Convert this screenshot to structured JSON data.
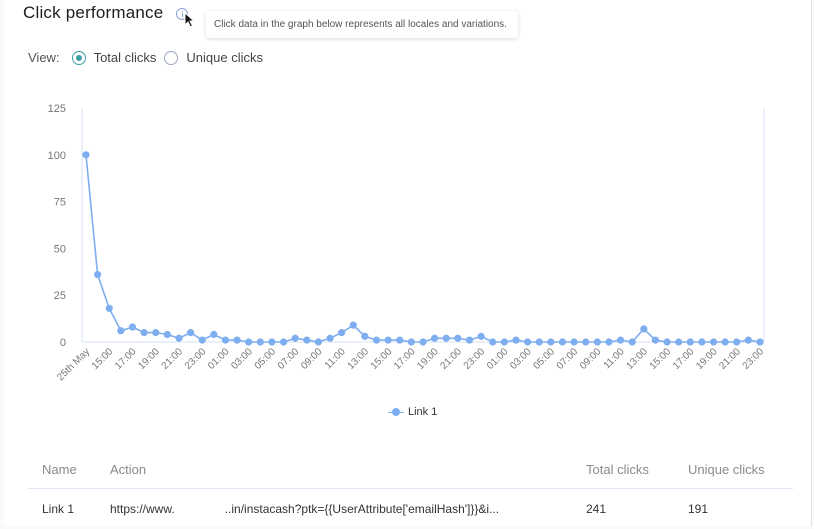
{
  "header": {
    "title": "Click performance",
    "info_icon": "info-circle-icon",
    "tooltip": "Click data in the graph below represents all locales and variations."
  },
  "view": {
    "label": "View:",
    "options": [
      {
        "label": "Total clicks",
        "checked": true
      },
      {
        "label": "Unique clicks",
        "checked": false
      }
    ]
  },
  "colors": {
    "series": "#7eaef0",
    "accent": "#3a9ea5",
    "axis": "#d6e2f5"
  },
  "chart_data": {
    "type": "line",
    "title": "",
    "xlabel": "",
    "ylabel": "",
    "ylim": [
      0,
      125
    ],
    "yticks": [
      0,
      25,
      50,
      75,
      100,
      125
    ],
    "grid": false,
    "legend_position": "bottom",
    "x_tick_labels": [
      "25th May",
      "15:00",
      "17:00",
      "19:00",
      "21:00",
      "23:00",
      "01:00",
      "03:00",
      "05:00",
      "07:00",
      "09:00",
      "11:00",
      "13:00",
      "15:00",
      "17:00",
      "19:00",
      "21:00",
      "23:00",
      "01:00",
      "03:00",
      "05:00",
      "07:00",
      "09:00",
      "11:00",
      "13:00",
      "15:00",
      "17:00",
      "19:00",
      "21:00",
      "23:00"
    ],
    "series": [
      {
        "name": "Link 1",
        "values": [
          100,
          36,
          18,
          6,
          8,
          5,
          5,
          4,
          2,
          5,
          1,
          4,
          1,
          1,
          0,
          0,
          0,
          0,
          2,
          1,
          0,
          2,
          5,
          9,
          3,
          1,
          1,
          1,
          0,
          0,
          2,
          2,
          2,
          1,
          3,
          0,
          0,
          1,
          0,
          0,
          0,
          0,
          0,
          0,
          0,
          0,
          1,
          0,
          7,
          1,
          0,
          0,
          0,
          0,
          0,
          0,
          0,
          1,
          0
        ]
      }
    ]
  },
  "legend": {
    "label": "Link 1"
  },
  "table": {
    "headers": [
      "Name",
      "Action",
      "Total clicks",
      "Unique clicks"
    ],
    "rows": [
      {
        "name": "Link 1",
        "action_prefix": "https://www.",
        "action_suffix": "..in/instacash?ptk={{UserAttribute['emailHash']}}&i...",
        "total": "241",
        "unique": "191"
      }
    ]
  }
}
